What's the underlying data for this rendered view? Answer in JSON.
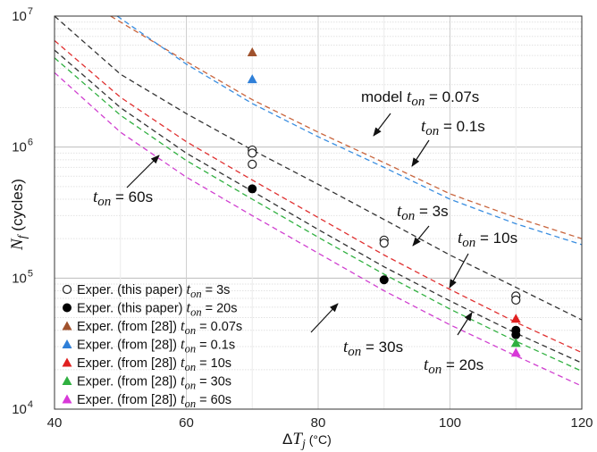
{
  "chart_data": {
    "type": "scatter",
    "xlabel": "ΔT_j (°C)",
    "ylabel": "N_f (cycles)",
    "xlim": [
      40,
      120
    ],
    "ylim": [
      10000,
      10000000
    ],
    "y_scale": "log",
    "grid": true,
    "x_ticks": [
      "40",
      "60",
      "80",
      "100",
      "120"
    ],
    "y_ticks": [
      "10^4",
      "10^5",
      "10^6",
      "10^7"
    ],
    "model_curves": [
      {
        "t_on": "0.07s",
        "color": "#c8643c",
        "points": [
          [
            48.5,
            10000000
          ],
          [
            60,
            4500000
          ],
          [
            70,
            2300000
          ],
          [
            80,
            1300000
          ],
          [
            90,
            760000
          ],
          [
            100,
            440000
          ],
          [
            110,
            290000
          ],
          [
            120,
            200000
          ]
        ]
      },
      {
        "t_on": "0.1s",
        "color": "#3a8ee0",
        "points": [
          [
            49.5,
            10000000
          ],
          [
            60,
            4300000
          ],
          [
            70,
            2150000
          ],
          [
            80,
            1200000
          ],
          [
            90,
            700000
          ],
          [
            100,
            400000
          ],
          [
            110,
            260000
          ],
          [
            120,
            180000
          ]
        ]
      },
      {
        "t_on": "3s",
        "color": "#333333",
        "points": [
          [
            40,
            10000000
          ],
          [
            50,
            3600000
          ],
          [
            60,
            1800000
          ],
          [
            70,
            950000
          ],
          [
            80,
            520000
          ],
          [
            90,
            280000
          ],
          [
            100,
            150000
          ],
          [
            110,
            85000
          ],
          [
            120,
            48000
          ]
        ]
      },
      {
        "t_on": "10s",
        "color": "#e03030",
        "points": [
          [
            40,
            6500000
          ],
          [
            50,
            2400000
          ],
          [
            60,
            1100000
          ],
          [
            70,
            560000
          ],
          [
            80,
            290000
          ],
          [
            90,
            150000
          ],
          [
            100,
            82000
          ],
          [
            110,
            46000
          ],
          [
            120,
            27000
          ]
        ]
      },
      {
        "t_on": "20s",
        "color": "#333333",
        "points": [
          [
            40,
            5500000
          ],
          [
            50,
            2000000
          ],
          [
            60,
            900000
          ],
          [
            70,
            460000
          ],
          [
            80,
            235000
          ],
          [
            90,
            122000
          ],
          [
            100,
            67000
          ],
          [
            110,
            38000
          ],
          [
            120,
            22500
          ]
        ]
      },
      {
        "t_on": "30s",
        "color": "#30b040",
        "points": [
          [
            40,
            4800000
          ],
          [
            50,
            1750000
          ],
          [
            60,
            790000
          ],
          [
            70,
            400000
          ],
          [
            80,
            205000
          ],
          [
            90,
            107000
          ],
          [
            100,
            58000
          ],
          [
            110,
            33000
          ],
          [
            120,
            19500
          ]
        ]
      },
      {
        "t_on": "60s",
        "color": "#d040d0",
        "points": [
          [
            40,
            3700000
          ],
          [
            50,
            1300000
          ],
          [
            60,
            590000
          ],
          [
            70,
            300000
          ],
          [
            80,
            155000
          ],
          [
            90,
            80000
          ],
          [
            100,
            44000
          ],
          [
            110,
            25500
          ],
          [
            120,
            15000
          ]
        ]
      }
    ],
    "series": [
      {
        "name": "Exper. (this paper)",
        "t_on": "3s",
        "marker": "open-circle",
        "color": "#222222",
        "points": [
          [
            70,
            950000
          ],
          [
            70,
            900000
          ],
          [
            70,
            740000
          ],
          [
            90,
            195000
          ],
          [
            90,
            185000
          ],
          [
            110,
            73000
          ],
          [
            110,
            68000
          ]
        ]
      },
      {
        "name": "Exper. (this paper)",
        "t_on": "20s",
        "marker": "filled-circle",
        "color": "#000000",
        "points": [
          [
            70,
            480000
          ],
          [
            90,
            97000
          ],
          [
            110,
            40000
          ],
          [
            110,
            37000
          ]
        ]
      },
      {
        "name": "Exper. (from [28])",
        "t_on": "0.07s",
        "marker": "triangle",
        "color": "#a0522d",
        "points": [
          [
            70,
            5300000
          ]
        ]
      },
      {
        "name": "Exper. (from [28])",
        "t_on": "0.1s",
        "marker": "triangle",
        "color": "#2f7fd8",
        "points": [
          [
            70,
            3300000
          ]
        ]
      },
      {
        "name": "Exper. (from [28])",
        "t_on": "10s",
        "marker": "triangle",
        "color": "#e02020",
        "points": [
          [
            110,
            49000
          ]
        ]
      },
      {
        "name": "Exper. (from [28])",
        "t_on": "30s",
        "marker": "triangle",
        "color": "#2fb040",
        "points": [
          [
            110,
            32000
          ]
        ]
      },
      {
        "name": "Exper. (from [28])",
        "t_on": "60s",
        "marker": "triangle",
        "color": "#d838d8",
        "points": [
          [
            110,
            27000
          ]
        ]
      }
    ],
    "legend": {
      "placement": "bottom-left",
      "entries": [
        {
          "text": "Exper. (this paper)",
          "t_on": "3s"
        },
        {
          "text": "Exper. (this paper)",
          "t_on": "20s"
        },
        {
          "text": "Exper. (from [28])",
          "t_on": "0.07s"
        },
        {
          "text": "Exper. (from [28])",
          "t_on": "0.1s"
        },
        {
          "text": "Exper. (from [28])",
          "t_on": "10s"
        },
        {
          "text": "Exper. (from [28])",
          "t_on": "30s"
        },
        {
          "text": "Exper. (from [28])",
          "t_on": "60s"
        }
      ]
    },
    "annotations": [
      {
        "prefix": "model",
        "t_on": "0.07s"
      },
      {
        "prefix": "",
        "t_on": "0.1s"
      },
      {
        "prefix": "",
        "t_on": "60s"
      },
      {
        "prefix": "",
        "t_on": "3s"
      },
      {
        "prefix": "",
        "t_on": "10s"
      },
      {
        "prefix": "",
        "t_on": "30s"
      },
      {
        "prefix": "",
        "t_on": "20s"
      }
    ]
  }
}
